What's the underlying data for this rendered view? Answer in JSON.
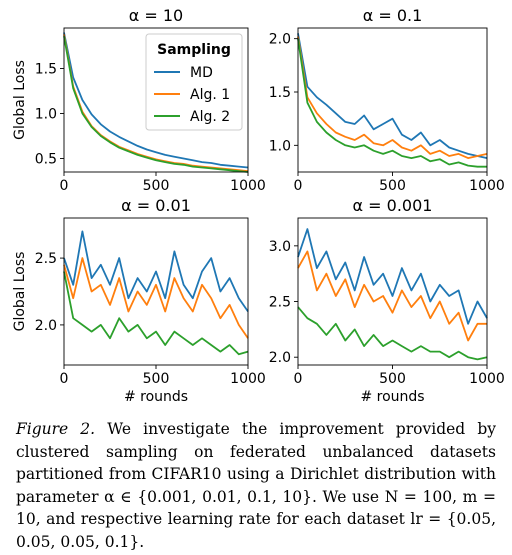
{
  "colors": {
    "MD": "#1f77b4",
    "Alg. 1": "#ff7f0e",
    "Alg. 2": "#2ca02c"
  },
  "legend": {
    "title": "Sampling",
    "position": "top-right of first panel"
  },
  "chart_data": [
    {
      "type": "line",
      "title": "α = 10",
      "xlabel": "",
      "ylabel": "Global Loss",
      "xlim": [
        0,
        1000
      ],
      "ylim": [
        0.35,
        1.95
      ],
      "xticks": [
        0,
        500,
        1000
      ],
      "yticks": [
        0.5,
        1.0,
        1.5
      ],
      "ytick_labels": [
        "0.5",
        "1.0",
        "1.5"
      ],
      "x": [
        0,
        50,
        100,
        150,
        200,
        250,
        300,
        350,
        400,
        450,
        500,
        550,
        600,
        650,
        700,
        750,
        800,
        850,
        900,
        950,
        1000
      ],
      "series": [
        {
          "name": "MD",
          "values": [
            1.9,
            1.4,
            1.15,
            0.99,
            0.88,
            0.8,
            0.74,
            0.69,
            0.64,
            0.6,
            0.57,
            0.54,
            0.52,
            0.5,
            0.48,
            0.46,
            0.45,
            0.43,
            0.42,
            0.41,
            0.4
          ]
        },
        {
          "name": "Alg. 1",
          "values": [
            1.88,
            1.3,
            1.02,
            0.86,
            0.76,
            0.69,
            0.63,
            0.59,
            0.55,
            0.52,
            0.49,
            0.47,
            0.45,
            0.44,
            0.42,
            0.41,
            0.4,
            0.39,
            0.38,
            0.37,
            0.36
          ]
        },
        {
          "name": "Alg. 2",
          "values": [
            1.86,
            1.28,
            1.0,
            0.85,
            0.75,
            0.68,
            0.62,
            0.58,
            0.54,
            0.51,
            0.48,
            0.46,
            0.44,
            0.43,
            0.41,
            0.4,
            0.39,
            0.38,
            0.37,
            0.36,
            0.35
          ]
        }
      ]
    },
    {
      "type": "line",
      "title": "α = 0.1",
      "xlabel": "",
      "ylabel": "",
      "xlim": [
        0,
        1000
      ],
      "ylim": [
        0.75,
        2.1
      ],
      "xticks": [
        0,
        500,
        1000
      ],
      "yticks": [
        1.0,
        1.5,
        2.0
      ],
      "ytick_labels": [
        "1.0",
        "1.5",
        "2.0"
      ],
      "x": [
        0,
        50,
        100,
        150,
        200,
        250,
        300,
        350,
        400,
        450,
        500,
        550,
        600,
        650,
        700,
        750,
        800,
        850,
        900,
        950,
        1000
      ],
      "series": [
        {
          "name": "MD",
          "values": [
            2.05,
            1.55,
            1.45,
            1.38,
            1.3,
            1.22,
            1.2,
            1.28,
            1.15,
            1.2,
            1.25,
            1.1,
            1.05,
            1.12,
            1.0,
            1.05,
            0.98,
            0.95,
            0.92,
            0.9,
            0.88
          ]
        },
        {
          "name": "Alg. 1",
          "values": [
            2.02,
            1.45,
            1.3,
            1.2,
            1.12,
            1.08,
            1.05,
            1.1,
            1.02,
            1.0,
            1.05,
            0.98,
            0.95,
            1.0,
            0.92,
            0.95,
            0.9,
            0.92,
            0.88,
            0.9,
            0.92
          ]
        },
        {
          "name": "Alg. 2",
          "values": [
            2.0,
            1.4,
            1.22,
            1.12,
            1.05,
            1.0,
            0.98,
            1.0,
            0.95,
            0.92,
            0.95,
            0.9,
            0.88,
            0.9,
            0.85,
            0.87,
            0.82,
            0.84,
            0.81,
            0.8,
            0.8
          ]
        }
      ]
    },
    {
      "type": "line",
      "title": "α = 0.01",
      "xlabel": "# rounds",
      "ylabel": "Global Loss",
      "xlim": [
        0,
        1000
      ],
      "ylim": [
        1.7,
        2.8
      ],
      "xticks": [
        0,
        500,
        1000
      ],
      "yticks": [
        2.0,
        2.5
      ],
      "ytick_labels": [
        "2.0",
        "2.5"
      ],
      "x": [
        0,
        50,
        100,
        150,
        200,
        250,
        300,
        350,
        400,
        450,
        500,
        550,
        600,
        650,
        700,
        750,
        800,
        850,
        900,
        950,
        1000
      ],
      "series": [
        {
          "name": "MD",
          "values": [
            2.5,
            2.3,
            2.7,
            2.35,
            2.45,
            2.3,
            2.5,
            2.2,
            2.35,
            2.25,
            2.4,
            2.2,
            2.55,
            2.3,
            2.2,
            2.4,
            2.5,
            2.25,
            2.35,
            2.2,
            2.1
          ]
        },
        {
          "name": "Alg. 1",
          "values": [
            2.45,
            2.2,
            2.5,
            2.25,
            2.3,
            2.15,
            2.35,
            2.1,
            2.25,
            2.15,
            2.3,
            2.1,
            2.35,
            2.2,
            2.1,
            2.3,
            2.2,
            2.05,
            2.15,
            2.0,
            1.9
          ]
        },
        {
          "name": "Alg. 2",
          "values": [
            2.4,
            2.05,
            2.0,
            1.95,
            2.0,
            1.9,
            2.05,
            1.95,
            2.0,
            1.9,
            1.95,
            1.85,
            1.95,
            1.9,
            1.85,
            1.9,
            1.85,
            1.8,
            1.85,
            1.78,
            1.8
          ]
        }
      ]
    },
    {
      "type": "line",
      "title": "α = 0.001",
      "xlabel": "# rounds",
      "ylabel": "",
      "xlim": [
        0,
        1000
      ],
      "ylim": [
        1.93,
        3.25
      ],
      "xticks": [
        0,
        500,
        1000
      ],
      "yticks": [
        2.0,
        2.5,
        3.0
      ],
      "ytick_labels": [
        "2.0",
        "2.5",
        "3.0"
      ],
      "x": [
        0,
        50,
        100,
        150,
        200,
        250,
        300,
        350,
        400,
        450,
        500,
        550,
        600,
        650,
        700,
        750,
        800,
        850,
        900,
        950,
        1000
      ],
      "series": [
        {
          "name": "MD",
          "values": [
            2.9,
            3.15,
            2.8,
            2.95,
            2.7,
            2.85,
            2.6,
            2.9,
            2.65,
            2.75,
            2.55,
            2.8,
            2.6,
            2.75,
            2.5,
            2.65,
            2.55,
            2.6,
            2.3,
            2.5,
            2.35
          ]
        },
        {
          "name": "Alg. 1",
          "values": [
            2.8,
            2.95,
            2.6,
            2.75,
            2.55,
            2.7,
            2.45,
            2.65,
            2.5,
            2.55,
            2.4,
            2.6,
            2.45,
            2.55,
            2.35,
            2.5,
            2.3,
            2.4,
            2.15,
            2.3,
            2.3
          ]
        },
        {
          "name": "Alg. 2",
          "values": [
            2.45,
            2.35,
            2.3,
            2.2,
            2.3,
            2.15,
            2.25,
            2.1,
            2.2,
            2.1,
            2.15,
            2.1,
            2.05,
            2.1,
            2.05,
            2.05,
            2.0,
            2.05,
            2.0,
            1.98,
            2.0
          ]
        }
      ]
    }
  ],
  "caption": {
    "lead": "Figure 2.",
    "text": "We investigate the improvement provided by clustered sampling on federated unbalanced datasets partitioned from CIFAR10 using a Dirichlet distribution with parameter α ∈ {0.001, 0.01, 0.1, 10}. We use N = 100, m = 10, and respective learning rate for each dataset lr = {0.05, 0.05, 0.05, 0.1}."
  }
}
